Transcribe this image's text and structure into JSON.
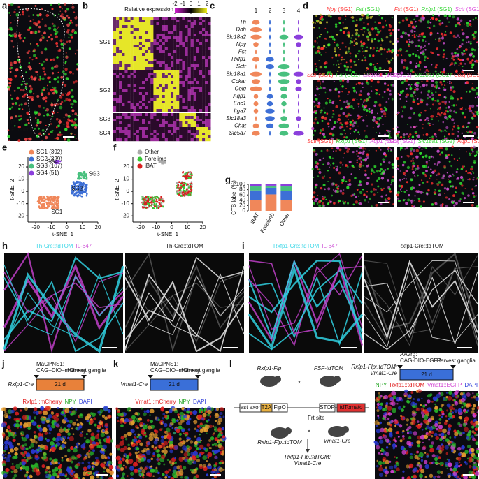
{
  "panels": {
    "a": {
      "letter": "a",
      "legend": [
        {
          "text": "iBAT",
          "color": "#e8313a"
        },
        {
          "text": "Forelimb",
          "color": "#35d435"
        }
      ]
    },
    "b": {
      "letter": "b",
      "title": "Relative expression",
      "colorbar_ticks": [
        -2,
        -1,
        0,
        1,
        2
      ],
      "rows": [
        "SG1",
        "SG2",
        "SG3",
        "SG4"
      ]
    },
    "c": {
      "letter": "c",
      "columns": [
        "1",
        "2",
        "3",
        "4"
      ],
      "column_colors": [
        "#f0875a",
        "#3d6fd6",
        "#48c07e",
        "#8b3fdc"
      ],
      "genes": [
        "Th",
        "Dbh",
        "Slc18a2",
        "Npy",
        "Fst",
        "Rxfp1",
        "Sctr",
        "Slc18a1",
        "Cckar",
        "Colq",
        "Aqp1",
        "Enc1",
        "Itga7",
        "Slc18a3",
        "Chat",
        "Slc5a7"
      ]
    },
    "d": {
      "letter": "d",
      "images": [
        [
          {
            "gene": "Npy",
            "tag": "(SG1)",
            "color": "#ff3b3b"
          },
          {
            "gene": "Fst",
            "tag": "(SG1)",
            "color": "#3bd83b"
          }
        ],
        [
          {
            "gene": "Fst",
            "tag": "(SG1)",
            "color": "#ff3b3b"
          },
          {
            "gene": "Rxfp1",
            "tag": "(SG1)",
            "color": "#3bd83b"
          },
          {
            "gene": "Sctr",
            "tag": "(SG1)",
            "color": "#e050e0"
          }
        ],
        [
          {
            "gene": "Sctr",
            "tag": "(SG1)",
            "color": "#ff3b3b"
          },
          {
            "gene": "Fst",
            "tag": "(SG1)",
            "color": "#3bd83b"
          },
          {
            "gene": "Slc18a1",
            "tag": "(SG2)",
            "color": "#e050e0"
          }
        ],
        [
          {
            "gene": "Fst",
            "tag": "(SG1)",
            "color": "#e050e0"
          },
          {
            "gene": "Slc18a1",
            "tag": "(SG2)",
            "color": "#3bd83b"
          },
          {
            "gene": "Colq",
            "tag": "(SG2–4)",
            "color": "#ff3b3b"
          }
        ],
        [
          {
            "gene": "Sctr",
            "tag": "(SG1)",
            "color": "#ff3b3b"
          },
          {
            "gene": "Rxfp1",
            "tag": "(SG1)",
            "color": "#3bd83b"
          },
          {
            "gene": "Aqp1",
            "tag": "(SG3)",
            "color": "#e050e0"
          }
        ],
        [
          {
            "gene": "Sctr",
            "tag": "(SG1)",
            "color": "#e050e0"
          },
          {
            "gene": "Slc18a1",
            "tag": "(SG2)",
            "color": "#3bd83b"
          },
          {
            "gene": "Aqp1",
            "tag": "(SG3)",
            "color": "#ff3b3b"
          }
        ]
      ]
    },
    "e": {
      "letter": "e",
      "legend": [
        {
          "text": "SG1 (392)",
          "color": "#f0875a"
        },
        {
          "text": "SG2 (329)",
          "color": "#3d6fd6"
        },
        {
          "text": "SG3 (107)",
          "color": "#48c07e"
        },
        {
          "text": "SG4 (51)",
          "color": "#8b3fdc"
        }
      ],
      "cluster_labels": [
        "SG1",
        "SG2",
        "SG3",
        "SG4"
      ],
      "x_label": "t-SNE_1",
      "y_label": "t-SNE_2",
      "xlim": [
        -25,
        20
      ],
      "xticks": [
        -20,
        -10,
        0,
        10,
        20
      ],
      "ylim": [
        -25,
        28
      ],
      "yticks": [
        -20,
        -10,
        0,
        10,
        20
      ]
    },
    "f": {
      "letter": "f",
      "legend": [
        {
          "text": "Other",
          "color": "#aaaaaa"
        },
        {
          "text": "Forelimb",
          "color": "#37c837"
        },
        {
          "text": "iBAT",
          "color": "#d82020"
        }
      ],
      "x_label": "t-SNE_1",
      "y_label": "t-SNE_2",
      "xlim": [
        -25,
        20
      ],
      "xticks": [
        -20,
        -10,
        0,
        10,
        20
      ],
      "ylim": [
        -25,
        28
      ],
      "yticks": [
        -20,
        -10,
        0,
        10,
        20
      ]
    },
    "g": {
      "letter": "g",
      "type": "bar",
      "stacked": true,
      "y_label": "CTB label (%)",
      "categories": [
        "iBAT",
        "Forelimb",
        "Other"
      ],
      "ylim": [
        0,
        100
      ],
      "yticks": [
        0,
        20,
        40,
        60,
        80,
        100
      ],
      "series": [
        {
          "color": "#f0875a",
          "values": [
            42,
            62,
            40
          ]
        },
        {
          "color": "#3d6fd6",
          "values": [
            35,
            25,
            35
          ]
        },
        {
          "color": "#48c07e",
          "values": [
            15,
            8,
            17
          ]
        },
        {
          "color": "#8b3fdc",
          "values": [
            8,
            5,
            8
          ]
        }
      ]
    },
    "h": {
      "letter": "h",
      "left": [
        {
          "text": "Th-Cre::tdTOM",
          "color": "#3fd8e8"
        },
        {
          "text": "IL-647",
          "color": "#d05ad8"
        }
      ],
      "right": [
        {
          "text": "Th-Cre::tdTOM",
          "color": "#111111"
        }
      ]
    },
    "i": {
      "letter": "i",
      "left": [
        {
          "text": "Rxfp1-Cre::tdTOM",
          "color": "#3fd8e8"
        },
        {
          "text": "IL-647",
          "color": "#d05ad8"
        }
      ],
      "right": [
        {
          "text": "Rxfp1-Cre::tdTOM",
          "color": "#111111"
        }
      ]
    },
    "j": {
      "letter": "j",
      "virus": [
        "MaCPNS1:",
        "CAG–DIO–mCherry"
      ],
      "harvest": "Harvest ganglia",
      "duration": "21 d",
      "box_color": "#e8813a",
      "mouse": "Rxfp1-Cre",
      "caption": [
        {
          "text": "Rxfp1::mCherry",
          "color": "#e02020"
        },
        {
          "text": "NPY",
          "color": "#2aa82a"
        },
        {
          "text": "DAPI",
          "color": "#2a3ad8"
        }
      ]
    },
    "k": {
      "letter": "k",
      "virus": [
        "MaCPNS1:",
        "CAG–DIO–mCherry"
      ],
      "harvest": "Harvest ganglia",
      "duration": "21 d",
      "box_color": "#3a6fd8",
      "mouse": "Vmat1-Cre",
      "caption": [
        {
          "text": "Vmat1::mCherry",
          "color": "#e02020"
        },
        {
          "text": "NPY",
          "color": "#2aa82a"
        },
        {
          "text": "DAPI",
          "color": "#2a3ad8"
        }
      ]
    },
    "l": {
      "letter": "l",
      "mouse_flp": "Rxfp1-Flp",
      "mouse_fsf": "FSF-tdTOM",
      "cross": "×",
      "construct": [
        "last exon",
        "T2A",
        "FlpO",
        "STOP",
        "tdTomato"
      ],
      "frt": "Frt site",
      "offspring": "Rxfp1-Flp::tdTOM",
      "cre": "Vmat1-Cre",
      "result": [
        "Rxfp1-Flp::tdTOM;",
        "Vmat1-Cre"
      ],
      "virus": [
        "AAVrg:",
        "CAG-DIO-EGFP"
      ],
      "harvest": "Harvest ganglia",
      "duration": "21 d",
      "box_color": "#3a6fd8",
      "mouse": [
        "Rxfp1-Flp::tdTOM;",
        "Vmat1-Cre"
      ],
      "caption": [
        {
          "text": "NPY",
          "color": "#2aa82a"
        },
        {
          "text": "Rxfp1::tdTOM",
          "color": "#e02020"
        },
        {
          "text": "Vmat1::EGFP",
          "color": "#d040d0"
        },
        {
          "text": "DAPI",
          "color": "#2a3ad8"
        }
      ]
    }
  }
}
